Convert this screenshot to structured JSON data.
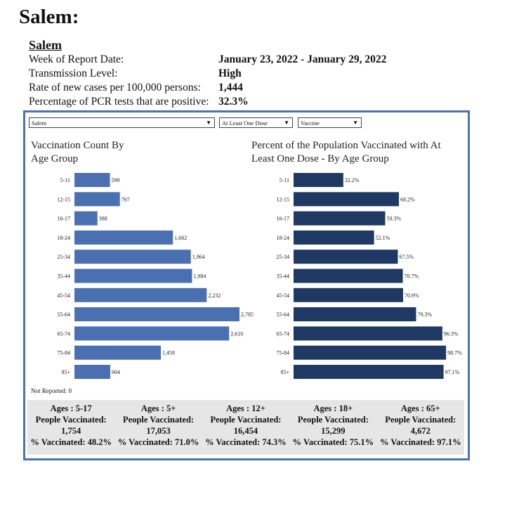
{
  "page_title": "Salem:",
  "report": {
    "name": "Salem",
    "rows": [
      {
        "label": "Week of Report Date:",
        "value": "January 23, 2022 - January 29, 2022"
      },
      {
        "label": "Transmission Level:",
        "value": "High"
      },
      {
        "label": "Rate of new cases per 100,000 persons:",
        "value": "1,444"
      },
      {
        "label": "Percentage of PCR tests that are positive:",
        "value": "32.3%"
      }
    ]
  },
  "filters": {
    "location": "Salem",
    "dose": "At Least One Dose",
    "product": "Vaccine"
  },
  "accent_colors": {
    "count_bar": "#4a70b2",
    "percent_bar": "#1f3864",
    "border": "#4a72b8"
  },
  "chart_data": [
    {
      "type": "bar",
      "orientation": "horizontal",
      "title": "Vaccination Count By Age Group",
      "categories": [
        "5-11",
        "12-15",
        "16-17",
        "18-24",
        "25-34",
        "35-44",
        "45-54",
        "55-64",
        "65-74",
        "75-84",
        "85+"
      ],
      "values": [
        599,
        767,
        388,
        1662,
        1964,
        1984,
        2232,
        2785,
        2610,
        1458,
        604
      ],
      "labels": [
        "599",
        "767",
        "388",
        "1,662",
        "1,964",
        "1,984",
        "2,232",
        "2,785",
        "2,610",
        "1,458",
        "604"
      ]
    },
    {
      "type": "bar",
      "orientation": "horizontal",
      "title": "Percent of the Population Vaccinated with At Least One Dose - By Age Group",
      "categories": [
        "5-11",
        "12-15",
        "16-17",
        "18-24",
        "25-34",
        "35-44",
        "45-54",
        "55-64",
        "65-74",
        "75-84",
        "85+"
      ],
      "values": [
        32.2,
        68.2,
        59.3,
        52.1,
        67.5,
        70.7,
        70.9,
        79.3,
        96.3,
        98.7,
        97.1
      ],
      "labels": [
        "32.2%",
        "68.2%",
        "59.3%",
        "52.1%",
        "67.5%",
        "70.7%",
        "70.9%",
        "79.3%",
        "96.3%",
        "98.7%",
        "97.1%"
      ]
    }
  ],
  "not_reported": "Not Reported: 0",
  "summary": [
    {
      "ages": "Ages : 5-17",
      "people_label": "People Vaccinated:",
      "people": "1,754",
      "pct_label": "% Vaccinated:",
      "pct": "48.2%"
    },
    {
      "ages": "Ages : 5+",
      "people_label": "People Vaccinated:",
      "people": "17,053",
      "pct_label": "% Vaccinated:",
      "pct": "71.0%"
    },
    {
      "ages": "Ages : 12+",
      "people_label": "People Vaccinated:",
      "people": "16,454",
      "pct_label": "% Vaccinated:",
      "pct": "74.3%"
    },
    {
      "ages": "Ages : 18+",
      "people_label": "People Vaccinated:",
      "people": "15,299",
      "pct_label": "% Vaccinated:",
      "pct": "75.1%"
    },
    {
      "ages": "Ages : 65+",
      "people_label": "People Vaccinated:",
      "people": "4,672",
      "pct_label": "% Vaccinated:",
      "pct": "97.1%"
    }
  ]
}
